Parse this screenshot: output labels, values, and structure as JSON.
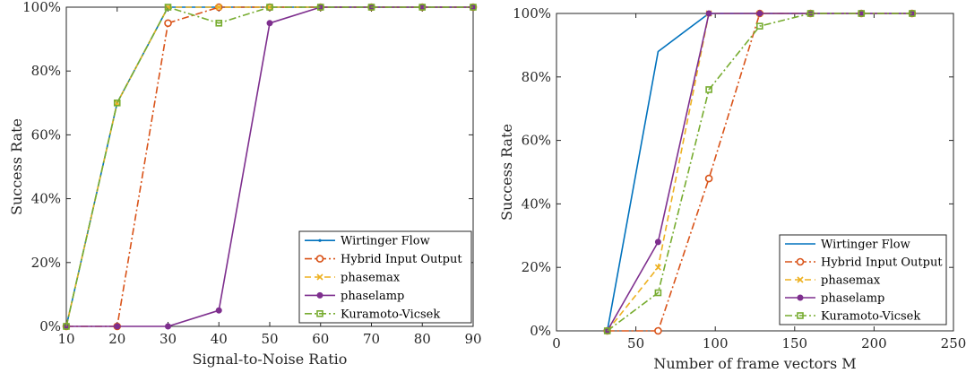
{
  "chart_data": [
    {
      "type": "line",
      "xlabel": "Signal-to-Noise Ratio",
      "ylabel": "Success Rate",
      "xlim": [
        10,
        90
      ],
      "ylim": [
        0,
        100
      ],
      "xticks": [
        10,
        20,
        30,
        40,
        50,
        60,
        70,
        80,
        90
      ],
      "yticks": [
        0,
        20,
        40,
        60,
        80,
        100
      ],
      "ytick_suffix": "%",
      "grid": false,
      "legend_position": "bottom-right",
      "x": [
        10,
        20,
        30,
        40,
        50,
        60,
        70,
        80,
        90
      ],
      "series": [
        {
          "name": "Wirtinger Flow",
          "color": "#0072BD",
          "dash": "solid",
          "marker": "point",
          "values": [
            0,
            70,
            100,
            100,
            100,
            100,
            100,
            100,
            100
          ]
        },
        {
          "name": "Hybrid Input Output",
          "color": "#D95319",
          "dash": "dashdot",
          "marker": "circle",
          "values": [
            0,
            0,
            95,
            100,
            100,
            100,
            100,
            100,
            100
          ]
        },
        {
          "name": "phasemax",
          "color": "#EDB120",
          "dash": "dashed",
          "marker": "x",
          "values": [
            0,
            70,
            100,
            100,
            100,
            100,
            100,
            100,
            100
          ]
        },
        {
          "name": "phaselamp",
          "color": "#7E2F8E",
          "dash": "solid",
          "marker": "dot",
          "values": [
            0,
            0,
            0,
            5,
            95,
            100,
            100,
            100,
            100
          ]
        },
        {
          "name": "Kuramoto-Vicsek",
          "color": "#77AC30",
          "dash": "dashdot",
          "marker": "square",
          "values": [
            0,
            70,
            100,
            95,
            100,
            100,
            100,
            100,
            100
          ]
        }
      ]
    },
    {
      "type": "line",
      "xlabel": "Number of frame vectors M",
      "ylabel": "Success Rate",
      "xlim": [
        0,
        250
      ],
      "ylim": [
        0,
        100
      ],
      "xticks": [
        0,
        50,
        100,
        150,
        200,
        250
      ],
      "yticks": [
        0,
        20,
        40,
        60,
        80,
        100
      ],
      "ytick_suffix": "%",
      "grid": false,
      "legend_position": "bottom-right",
      "x": [
        32,
        64,
        96,
        128,
        160,
        192,
        224
      ],
      "series": [
        {
          "name": "Wirtinger Flow",
          "color": "#0072BD",
          "dash": "solid",
          "marker": "none",
          "values": [
            0,
            88,
            100,
            100,
            100,
            100,
            100
          ]
        },
        {
          "name": "Hybrid Input Output",
          "color": "#D95319",
          "dash": "dashdot",
          "marker": "circle",
          "values": [
            0,
            0,
            48,
            100,
            100,
            100,
            100
          ]
        },
        {
          "name": "phasemax",
          "color": "#EDB120",
          "dash": "dashed",
          "marker": "x",
          "values": [
            0,
            20,
            100,
            100,
            100,
            100,
            100
          ]
        },
        {
          "name": "phaselamp",
          "color": "#7E2F8E",
          "dash": "solid",
          "marker": "dot",
          "values": [
            0,
            28,
            100,
            100,
            100,
            100,
            100
          ]
        },
        {
          "name": "Kuramoto-Vicsek",
          "color": "#77AC30",
          "dash": "dashdot",
          "marker": "square",
          "values": [
            0,
            12,
            76,
            96,
            100,
            100,
            100
          ]
        }
      ]
    }
  ]
}
